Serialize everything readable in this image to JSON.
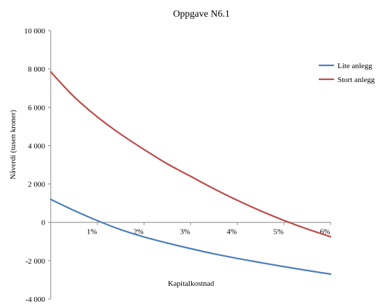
{
  "chart_data": {
    "type": "line",
    "title": "Oppgave N6.1",
    "xlabel": "Kapitalkostnad",
    "ylabel": "Nåverdi (tusen kroner)",
    "xlim": [
      0,
      6
    ],
    "ylim": [
      -4000,
      10000
    ],
    "y_ticks": [
      10000,
      8000,
      6000,
      4000,
      2000,
      0,
      -2000,
      -4000
    ],
    "y_tick_labels": [
      "10 000",
      "8 000",
      "6 000",
      "4 000",
      "2 000",
      "0",
      "-2 000",
      "-4 000"
    ],
    "x_ticks": [
      1,
      2,
      3,
      4,
      5,
      6
    ],
    "x_tick_labels": [
      "1%",
      "2%",
      "3%",
      "4%",
      "5%",
      "6%"
    ],
    "grid": false,
    "legend_position": "right",
    "series": [
      {
        "name": "Lite anlegg",
        "color": "#4a7ebb",
        "x": [
          0,
          0.5,
          1,
          1.5,
          2,
          2.5,
          3,
          3.5,
          4,
          4.5,
          5,
          5.5,
          6
        ],
        "values": [
          1200,
          620,
          90,
          -380,
          -760,
          -1080,
          -1370,
          -1640,
          -1880,
          -2100,
          -2310,
          -2510,
          -2700
        ]
      },
      {
        "name": "Stort anlegg",
        "color": "#be4b48",
        "x": [
          0,
          0.5,
          1,
          1.5,
          2,
          2.5,
          3,
          3.5,
          4,
          4.5,
          5,
          5.5,
          6
        ],
        "values": [
          7850,
          6550,
          5500,
          4600,
          3800,
          3050,
          2400,
          1750,
          1150,
          600,
          100,
          -350,
          -750
        ]
      }
    ]
  }
}
